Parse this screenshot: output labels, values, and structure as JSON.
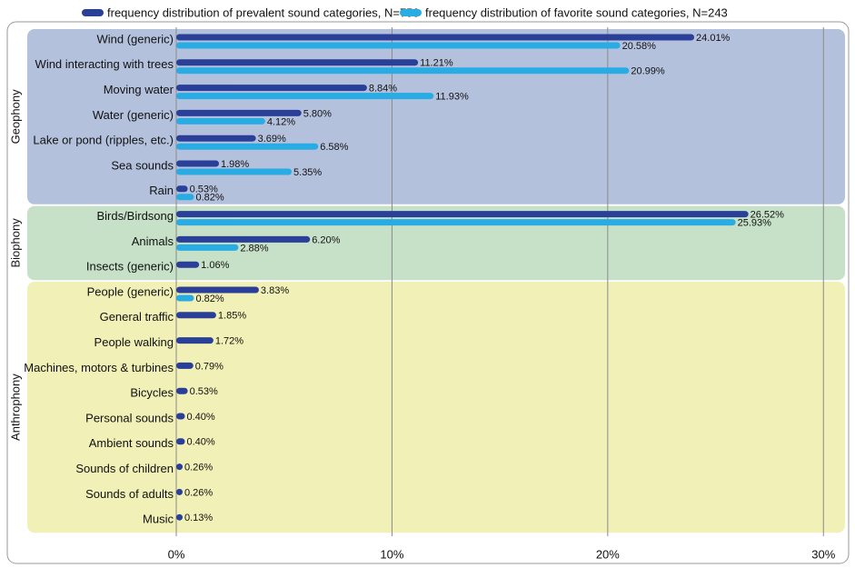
{
  "chart_data": {
    "type": "bar",
    "orientation": "horizontal",
    "groups": [
      {
        "label": "Geophony",
        "color": "#b4c1dd",
        "categories": [
          "Wind (generic)",
          "Wind interacting with trees",
          "Moving water",
          "Water (generic)",
          "Lake or pond (ripples, etc.)",
          "Sea sounds",
          "Rain"
        ]
      },
      {
        "label": "Biophony",
        "color": "#c6e1c7",
        "categories": [
          "Birds/Birdsong",
          "Animals",
          "Insects (generic)"
        ]
      },
      {
        "label": "Anthrophony",
        "color": "#f1f0b6",
        "categories": [
          "People (generic)",
          "General traffic",
          "People walking",
          "Machines, motors & turbines",
          "Bicycles",
          "Personal sounds",
          "Ambient sounds",
          "Sounds of children",
          "Sounds of adults",
          "Music"
        ]
      }
    ],
    "series": [
      {
        "name": "frequency distribution of prevalent sound categories, N=758",
        "color": "#2a3f98",
        "values": [
          24.01,
          11.21,
          8.84,
          5.8,
          3.69,
          1.98,
          0.53,
          26.52,
          6.2,
          1.06,
          3.83,
          1.85,
          1.72,
          0.79,
          0.53,
          0.4,
          0.4,
          0.26,
          0.26,
          0.13
        ],
        "value_labels": [
          "24.01%",
          "11.21%",
          "8.84%",
          "5.80%",
          "3.69%",
          "1.98%",
          "0.53%",
          "26.52%",
          "6.20%",
          "1.06%",
          "3.83%",
          "1.85%",
          "1.72%",
          "0.79%",
          "0.53%",
          "0.40%",
          "0.40%",
          "0.26%",
          "0.26%",
          "0.13%"
        ]
      },
      {
        "name": "frequency distribution of favorite sound categories, N=243",
        "color": "#29ace3",
        "values": [
          20.58,
          20.99,
          11.93,
          4.12,
          6.58,
          5.35,
          0.82,
          25.93,
          2.88,
          null,
          0.82,
          null,
          null,
          null,
          null,
          null,
          null,
          null,
          null,
          null
        ],
        "value_labels": [
          "20.58%",
          "20.99%",
          "11.93%",
          "4.12%",
          "6.58%",
          "5.35%",
          "0.82%",
          "25.93%",
          "2.88%",
          null,
          "0.82%",
          null,
          null,
          null,
          null,
          null,
          null,
          null,
          null,
          null
        ]
      }
    ],
    "xlim": [
      0,
      31
    ],
    "xticks": [
      {
        "value": 0,
        "label": "0%"
      },
      {
        "value": 10,
        "label": "10%"
      },
      {
        "value": 20,
        "label": "20%"
      },
      {
        "value": 30,
        "label": "30%"
      }
    ],
    "grid": true
  }
}
